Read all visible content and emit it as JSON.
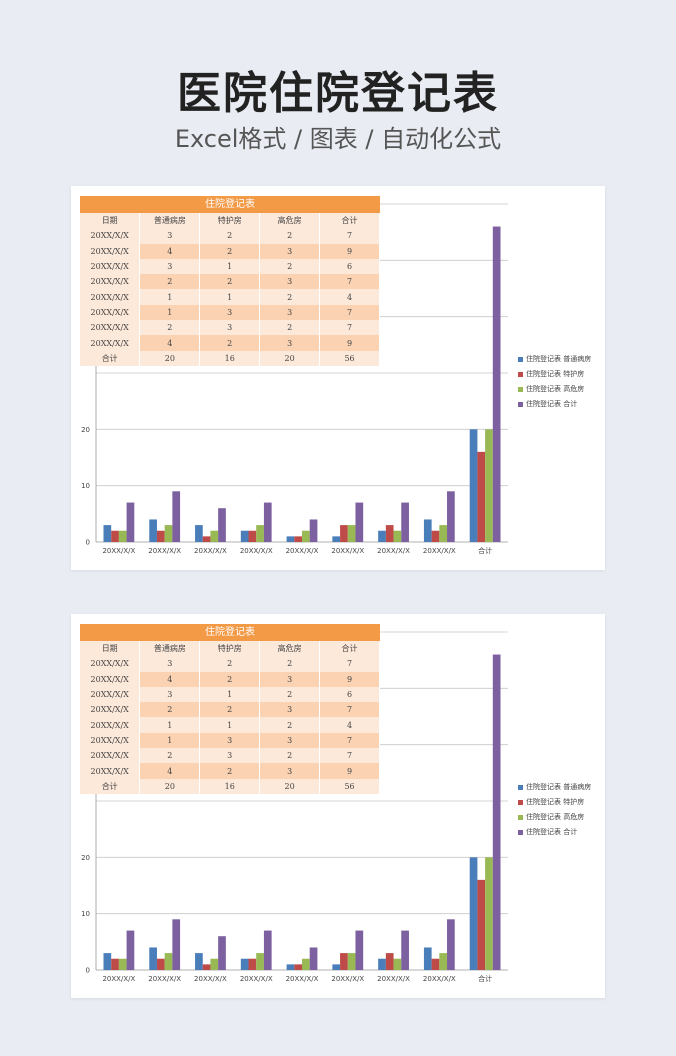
{
  "header": {
    "title": "医院住院登记表",
    "subtitle": "Excel格式 / 图表 / 自动化公式"
  },
  "sheet": {
    "title": "住院登记表",
    "columns": [
      "日期",
      "普通病房",
      "特护房",
      "高危房",
      "合计"
    ],
    "rows": [
      [
        "20XX/X/X",
        "3",
        "2",
        "2",
        "7"
      ],
      [
        "20XX/X/X",
        "4",
        "2",
        "3",
        "9"
      ],
      [
        "20XX/X/X",
        "3",
        "1",
        "2",
        "6"
      ],
      [
        "20XX/X/X",
        "2",
        "2",
        "3",
        "7"
      ],
      [
        "20XX/X/X",
        "1",
        "1",
        "2",
        "4"
      ],
      [
        "20XX/X/X",
        "1",
        "3",
        "3",
        "7"
      ],
      [
        "20XX/X/X",
        "2",
        "3",
        "2",
        "7"
      ],
      [
        "20XX/X/X",
        "4",
        "2",
        "3",
        "9"
      ]
    ],
    "total": [
      "合计",
      "20",
      "16",
      "20",
      "56"
    ]
  },
  "chart_data": {
    "type": "bar",
    "categories": [
      "20XX/X/X",
      "20XX/X/X",
      "20XX/X/X",
      "20XX/X/X",
      "20XX/X/X",
      "20XX/X/X",
      "20XX/X/X",
      "20XX/X/X",
      "合计"
    ],
    "series": [
      {
        "name": "住院登记表 普通病房",
        "color": "#4a7ebb",
        "values": [
          3,
          4,
          3,
          2,
          1,
          1,
          2,
          4,
          20
        ]
      },
      {
        "name": "住院登记表 特护房",
        "color": "#be4b48",
        "values": [
          2,
          2,
          1,
          2,
          1,
          3,
          3,
          2,
          16
        ]
      },
      {
        "name": "住院登记表 高危房",
        "color": "#98b954",
        "values": [
          2,
          3,
          2,
          3,
          2,
          3,
          2,
          3,
          20
        ]
      },
      {
        "name": "住院登记表 合计",
        "color": "#7d60a0",
        "values": [
          7,
          9,
          6,
          7,
          4,
          7,
          7,
          9,
          56
        ]
      }
    ],
    "yticks": [
      "0",
      "10",
      "20"
    ],
    "ylim": [
      0,
      60
    ],
    "legend": "right",
    "grid": true
  }
}
